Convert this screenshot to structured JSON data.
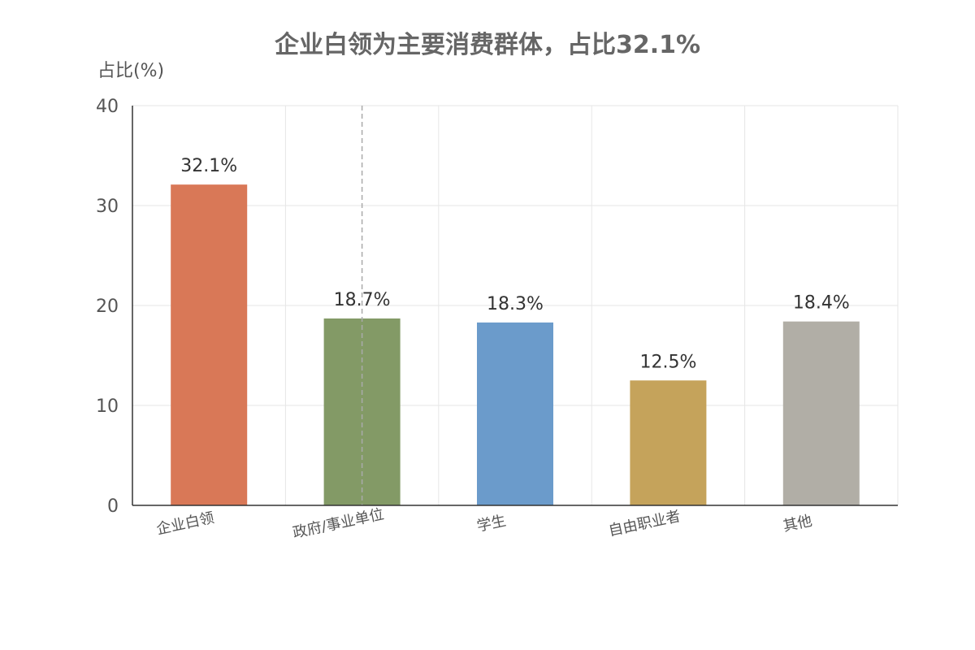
{
  "chart_data": {
    "type": "bar",
    "title": "企业白领为主要消费群体，占比32.1%",
    "ylabel": "占比(%)",
    "xlabel": "",
    "categories": [
      "企业白领",
      "政府/事业单位",
      "学生",
      "自由职业者",
      "其他"
    ],
    "values": [
      32.1,
      18.7,
      18.3,
      12.5,
      18.4
    ],
    "data_labels": [
      "32.1%",
      "18.7%",
      "18.3%",
      "12.5%",
      "18.4%"
    ],
    "colors": [
      "#D97857",
      "#839A66",
      "#6B9BCB",
      "#C5A35B",
      "#B1AEA6"
    ],
    "ylim": [
      0,
      40
    ],
    "yticks": [
      0,
      10,
      20,
      30,
      40
    ],
    "grid": true,
    "legend": "none"
  }
}
